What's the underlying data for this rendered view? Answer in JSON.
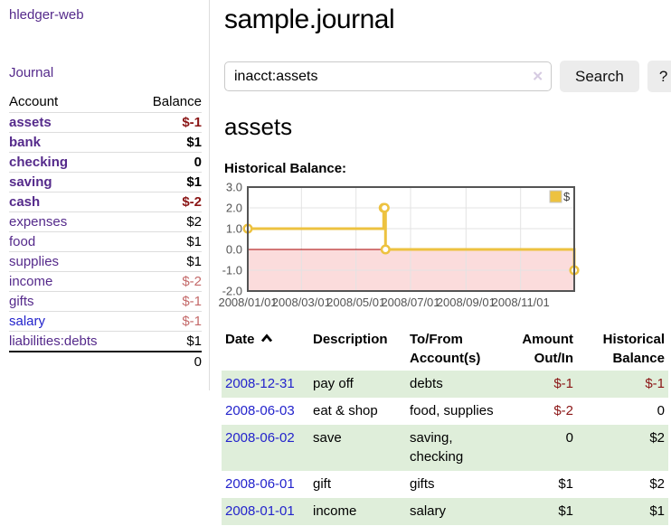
{
  "colors": {
    "accent_purple": "#552a8b",
    "link_blue": "#2323cc",
    "negative_strong": "#8b1616",
    "negative_muted": "#c46a6a",
    "stripe_green": "#dfeeda",
    "series_yellow": "#edc240",
    "area_pink": "#fbdcdc",
    "zero_red": "#aa0000",
    "button_gray": "#ececec",
    "border_gray": "#dddddd",
    "axis_gray": "#545454"
  },
  "sidebar": {
    "app_title": "hledger-web",
    "journal_link": "Journal",
    "accounts": {
      "header_account": "Account",
      "header_balance": "Balance",
      "rows": [
        {
          "name": "assets",
          "balance": "$-1",
          "depth": 1,
          "bold": true,
          "balance_class": "neg-strong",
          "link_class": ""
        },
        {
          "name": "bank",
          "balance": "$1",
          "depth": 2,
          "bold": true,
          "balance_class": "",
          "link_class": ""
        },
        {
          "name": "checking",
          "balance": "0",
          "depth": 3,
          "bold": true,
          "balance_class": "",
          "link_class": ""
        },
        {
          "name": "saving",
          "balance": "$1",
          "depth": 3,
          "bold": true,
          "balance_class": "",
          "link_class": ""
        },
        {
          "name": "cash",
          "balance": "$-2",
          "depth": 2,
          "bold": true,
          "balance_class": "neg-strong",
          "link_class": ""
        },
        {
          "name": "expenses",
          "balance": "$2",
          "depth": 1,
          "bold": false,
          "balance_class": "",
          "link_class": ""
        },
        {
          "name": "food",
          "balance": "$1",
          "depth": 2,
          "bold": false,
          "balance_class": "",
          "link_class": ""
        },
        {
          "name": "supplies",
          "balance": "$1",
          "depth": 2,
          "bold": false,
          "balance_class": "",
          "link_class": ""
        },
        {
          "name": "income",
          "balance": "$-2",
          "depth": 1,
          "bold": false,
          "balance_class": "neg-muted",
          "link_class": ""
        },
        {
          "name": "gifts",
          "balance": "$-1",
          "depth": 2,
          "bold": false,
          "balance_class": "neg-muted",
          "link_class": ""
        },
        {
          "name": "salary",
          "balance": "$-1",
          "depth": 2,
          "bold": false,
          "balance_class": "neg-muted",
          "link_class": "blue"
        },
        {
          "name": "liabilities:debts",
          "balance": "$1",
          "depth": 1,
          "bold": false,
          "balance_class": "",
          "link_class": ""
        }
      ],
      "total": "0"
    }
  },
  "main": {
    "title": "sample.journal",
    "search": {
      "value": "inacct:assets",
      "clear": "✕",
      "button": "Search",
      "help": "?"
    },
    "heading": "assets",
    "chart_title": "Historical Balance:"
  },
  "chart_data": {
    "type": "line",
    "step": true,
    "title": "Historical Balance",
    "series": [
      {
        "name": "$",
        "color": "#edc240",
        "points": [
          [
            "2008-01-01",
            1
          ],
          [
            "2008-06-01",
            2
          ],
          [
            "2008-06-02",
            2
          ],
          [
            "2008-06-03",
            0
          ],
          [
            "2008-12-31",
            -1
          ]
        ]
      }
    ],
    "x_range": [
      "2008-01-01",
      "2008-12-31"
    ],
    "ylim": [
      -2,
      3
    ],
    "y_ticks": [
      "3.0",
      "2.0",
      "1.0",
      "0.0",
      "-1.0",
      "-2.0"
    ],
    "x_ticks": [
      "2008/01/01",
      "2008/03/01",
      "2008/05/01",
      "2008/07/01",
      "2008/09/01",
      "2008/11/01"
    ],
    "legend": {
      "label": "$",
      "position": "top-right"
    },
    "negative_region_shaded": true,
    "grid": true
  },
  "register": {
    "headers": {
      "date": "Date",
      "description": "Description",
      "accounts": "To/From Account(s)",
      "amount": "Amount Out/In",
      "balance": "Historical Balance"
    },
    "rows": [
      {
        "date": "2008-12-31",
        "description": "pay off",
        "accounts": "debts",
        "amount": "$-1",
        "amount_class": "neg",
        "balance": "$-1",
        "balance_class": "neg"
      },
      {
        "date": "2008-06-03",
        "description": "eat & shop",
        "accounts": "food, supplies",
        "amount": "$-2",
        "amount_class": "neg",
        "balance": "0",
        "balance_class": ""
      },
      {
        "date": "2008-06-02",
        "description": "save",
        "accounts": "saving, checking",
        "amount": "0",
        "amount_class": "",
        "balance": "$2",
        "balance_class": ""
      },
      {
        "date": "2008-06-01",
        "description": "gift",
        "accounts": "gifts",
        "amount": "$1",
        "amount_class": "",
        "balance": "$2",
        "balance_class": ""
      },
      {
        "date": "2008-01-01",
        "description": "income",
        "accounts": "salary",
        "amount": "$1",
        "amount_class": "",
        "balance": "$1",
        "balance_class": ""
      }
    ]
  }
}
